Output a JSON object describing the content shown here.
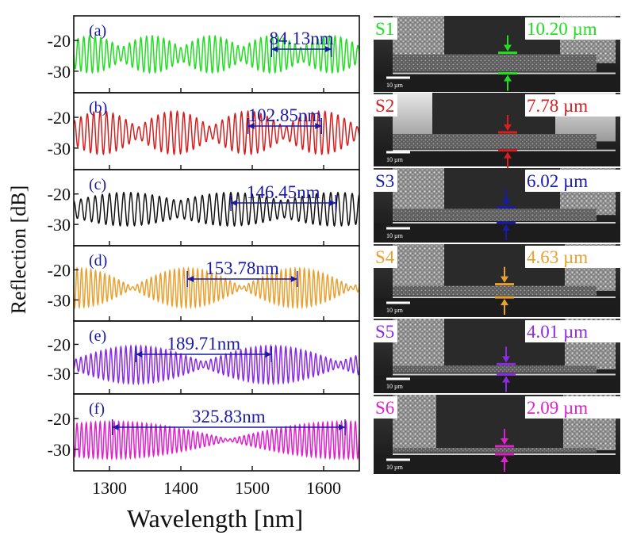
{
  "chart_data": {
    "type": "line",
    "xlabel": "Wavelength [nm]",
    "ylabel": "Reflection [dB]",
    "xlim": [
      1250,
      1650
    ],
    "xticks": [
      1300,
      1400,
      1500,
      1600
    ],
    "ylim": [
      -37,
      -12
    ],
    "yticks": [
      -20,
      -30
    ],
    "panels": [
      {
        "label": "(a)",
        "color": "#22dd22",
        "fsr_label": "84.13nm",
        "fsr_start": 1527,
        "fsr_end": 1611,
        "fringe_period": 8.0,
        "envelope_period": 84.13,
        "envelope_min": 0.35,
        "center": -24.5,
        "half_amp": 6.0
      },
      {
        "label": "(b)",
        "color": "#d42020",
        "fsr_label": "102.85nm",
        "fsr_start": 1494,
        "fsr_end": 1597,
        "fringe_period": 9.0,
        "envelope_period": 102.85,
        "envelope_min": 0.25,
        "center": -25.0,
        "half_amp": 7.0
      },
      {
        "label": "(c)",
        "color": "#111111",
        "fsr_label": "146.45nm",
        "fsr_start": 1470,
        "fsr_end": 1617,
        "fringe_period": 10.0,
        "envelope_period": 146.45,
        "envelope_min": 0.5,
        "center": -25.0,
        "half_amp": 5.5
      },
      {
        "label": "(d)",
        "color": "#e8a030",
        "fsr_label": "153.78nm",
        "fsr_start": 1409,
        "fsr_end": 1563,
        "fringe_period": 6.5,
        "envelope_period": 153.78,
        "envelope_min": 0.05,
        "center": -26.0,
        "half_amp": 6.5
      },
      {
        "label": "(e)",
        "color": "#8a2be2",
        "fsr_label": "189.71nm",
        "fsr_start": 1337,
        "fsr_end": 1527,
        "fringe_period": 7.0,
        "envelope_period": 189.71,
        "envelope_min": 0.15,
        "center": -27.0,
        "half_amp": 6.5
      },
      {
        "label": "(f)",
        "color": "#dd22cc",
        "fsr_label": "325.83nm",
        "fsr_start": 1304,
        "fsr_end": 1630,
        "fringe_period": 6.5,
        "envelope_period": 325.83,
        "envelope_min": 0.05,
        "center": -27.0,
        "half_amp": 6.0
      }
    ],
    "sem_samples": [
      {
        "id": "S1",
        "thickness": "10.20 µm",
        "color": "#22dd22",
        "scale_bar": "10 µm"
      },
      {
        "id": "S2",
        "thickness": "7.78 µm",
        "color": "#d42020",
        "scale_bar": "10 µm"
      },
      {
        "id": "S3",
        "thickness": "6.02 µm",
        "color": "#1a1aa8",
        "scale_bar": "10 µm"
      },
      {
        "id": "S4",
        "thickness": "4.63 µm",
        "color": "#e8a030",
        "scale_bar": "10 µm"
      },
      {
        "id": "S5",
        "thickness": "4.01 µm",
        "color": "#8a2be2",
        "scale_bar": "10 µm"
      },
      {
        "id": "S6",
        "thickness": "2.09 µm",
        "color": "#dd22cc",
        "scale_bar": "10 µm"
      }
    ],
    "annotation_color": "#1a1aa8"
  }
}
